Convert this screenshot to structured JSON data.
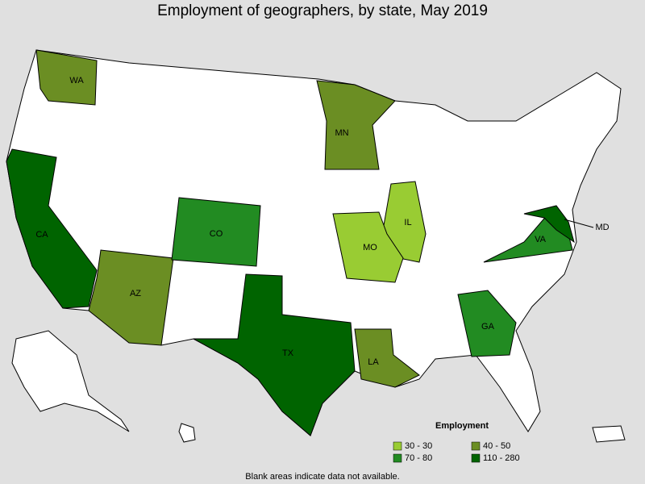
{
  "title": "Employment of geographers, by state, May 2019",
  "legend": {
    "title": "Employment",
    "items": [
      {
        "label": "30 - 30",
        "color": "#99cc33"
      },
      {
        "label": "40 - 50",
        "color": "#6b8e23"
      },
      {
        "label": "70 - 80",
        "color": "#228b22"
      },
      {
        "label": "110 - 280",
        "color": "#006400"
      }
    ]
  },
  "states": [
    {
      "label": "WA",
      "bin": 1
    },
    {
      "label": "CA",
      "bin": 3
    },
    {
      "label": "AZ",
      "bin": 1
    },
    {
      "label": "CO",
      "bin": 2
    },
    {
      "label": "MN",
      "bin": 1
    },
    {
      "label": "IL",
      "bin": 0
    },
    {
      "label": "MO",
      "bin": 0
    },
    {
      "label": "LA",
      "bin": 1
    },
    {
      "label": "TX",
      "bin": 3
    },
    {
      "label": "GA",
      "bin": 2
    },
    {
      "label": "VA",
      "bin": 2
    },
    {
      "label": "MD",
      "bin": 3
    }
  ],
  "note": "Blank areas indicate data not available."
}
